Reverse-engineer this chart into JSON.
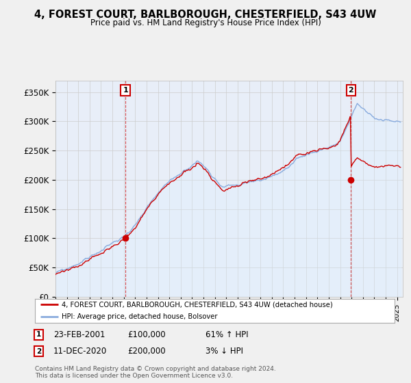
{
  "title": "4, FOREST COURT, BARLBOROUGH, CHESTERFIELD, S43 4UW",
  "subtitle": "Price paid vs. HM Land Registry's House Price Index (HPI)",
  "ylabel_ticks": [
    "£0",
    "£50K",
    "£100K",
    "£150K",
    "£200K",
    "£250K",
    "£300K",
    "£350K"
  ],
  "ytick_values": [
    0,
    50000,
    100000,
    150000,
    200000,
    250000,
    300000,
    350000
  ],
  "ylim": [
    0,
    370000
  ],
  "xlim_start": 1995.0,
  "xlim_end": 2025.5,
  "sale1_date": 2001.14,
  "sale1_price": 100000,
  "sale1_label": "1",
  "sale1_hpi_ratio": 1.61,
  "sale2_date": 2020.94,
  "sale2_price": 200000,
  "sale2_label": "2",
  "sale2_hpi_ratio": 0.97,
  "legend_property": "4, FOREST COURT, BARLBOROUGH, CHESTERFIELD, S43 4UW (detached house)",
  "legend_hpi": "HPI: Average price, detached house, Bolsover",
  "date1_str": "23-FEB-2001",
  "price1_str": "£100,000",
  "pct1_str": "61% ↑ HPI",
  "date2_str": "11-DEC-2020",
  "price2_str": "£200,000",
  "pct2_str": "3% ↓ HPI",
  "footnote": "Contains HM Land Registry data © Crown copyright and database right 2024.\nThis data is licensed under the Open Government Licence v3.0.",
  "property_line_color": "#cc0000",
  "hpi_line_color": "#88aadd",
  "hpi_fill_color": "#ddeeff",
  "background_color": "#f0f0f0",
  "plot_bg_color": "#e8eef8"
}
